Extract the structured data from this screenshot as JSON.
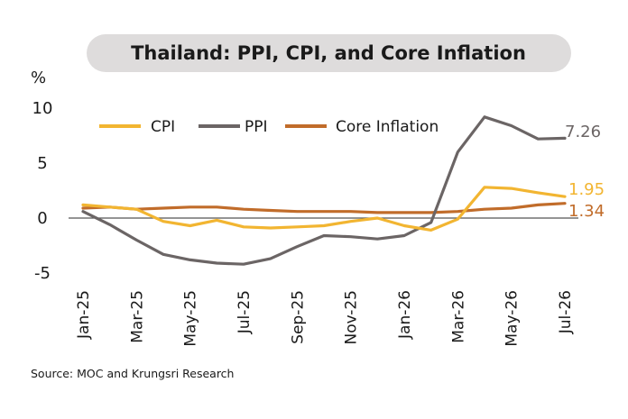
{
  "chart_data": {
    "type": "line",
    "title": "Thailand: PPI, CPI, and Core Inflation",
    "unit": "%",
    "xlabel": "",
    "ylabel": "",
    "ylim": [
      -5,
      10
    ],
    "yticks": [
      10,
      5,
      0,
      -5
    ],
    "ytick_labels": [
      "10",
      "5",
      "0",
      "-5"
    ],
    "grid": false,
    "legend_position": "top",
    "x": [
      "Jan-25",
      "Feb-25",
      "Mar-25",
      "Apr-25",
      "May-25",
      "Jun-25",
      "Jul-25",
      "Aug-25",
      "Sep-25",
      "Oct-25",
      "Nov-25",
      "Dec-25",
      "Jan-26",
      "Feb-26",
      "Mar-26",
      "Apr-26",
      "May-26",
      "Jun-26",
      "Jul-26"
    ],
    "xtick_labels": [
      "Jan-25",
      "Mar-25",
      "May-25",
      "Jul-25",
      "Sep-25",
      "Nov-25",
      "Jan-26",
      "Mar-26",
      "May-26",
      "Jul-26"
    ],
    "series": [
      {
        "name": "CPI",
        "color": "#f2b531",
        "end_label": "1.95",
        "values": [
          1.2,
          1.0,
          0.8,
          -0.3,
          -0.7,
          -0.2,
          -0.8,
          -0.9,
          -0.8,
          -0.7,
          -0.3,
          0.0,
          -0.7,
          -1.1,
          -0.1,
          2.8,
          2.7,
          2.3,
          1.95
        ]
      },
      {
        "name": "PPI",
        "color": "#6b6565",
        "end_label": "7.26",
        "values": [
          0.6,
          -0.6,
          -2.0,
          -3.3,
          -3.8,
          -4.1,
          -4.2,
          -3.7,
          -2.6,
          -1.6,
          -1.7,
          -1.9,
          -1.6,
          -0.4,
          6.0,
          9.2,
          8.4,
          7.2,
          7.26
        ]
      },
      {
        "name": "Core Inflation",
        "color": "#c16c2a",
        "end_label": "1.34",
        "values": [
          0.9,
          1.0,
          0.8,
          0.9,
          1.0,
          1.0,
          0.8,
          0.7,
          0.6,
          0.6,
          0.6,
          0.5,
          0.5,
          0.5,
          0.6,
          0.8,
          0.9,
          1.2,
          1.34
        ]
      }
    ],
    "source": "Source: MOC and Krungsri Research"
  }
}
